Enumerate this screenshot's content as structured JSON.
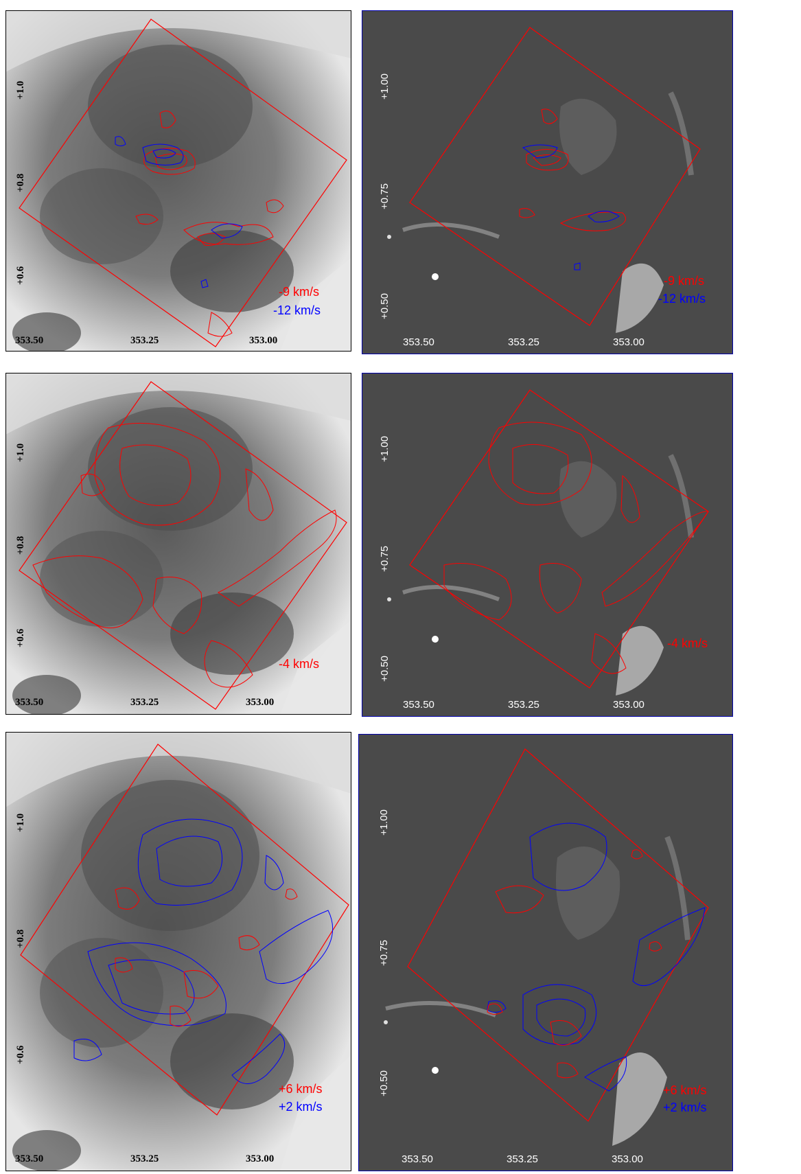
{
  "figure": {
    "rows": [
      {
        "left": {
          "x_ticks": [
            "353.50",
            "353.25",
            "353.00"
          ],
          "y_ticks": [
            "+1.0",
            "+0.8",
            "+0.6"
          ],
          "legend": [
            {
              "text": "-9 km/s",
              "color": "#ff0000"
            },
            {
              "text": "-12 km/s",
              "color": "#0000ff"
            }
          ]
        },
        "right": {
          "x_ticks": [
            "353.50",
            "353.25",
            "353.00"
          ],
          "y_ticks": [
            "+1.00",
            "+0.75",
            "+0.50"
          ],
          "legend": [
            {
              "text": "-9 km/s",
              "color": "#ff0000"
            },
            {
              "text": "-12 km/s",
              "color": "#0000ff"
            }
          ]
        }
      },
      {
        "left": {
          "x_ticks": [
            "353.50",
            "353.25",
            "353.00"
          ],
          "y_ticks": [
            "+1.0",
            "+0.8",
            "+0.6"
          ],
          "legend": [
            {
              "text": "-4 km/s",
              "color": "#ff0000"
            }
          ]
        },
        "right": {
          "x_ticks": [
            "353.50",
            "353.25",
            "353.00"
          ],
          "y_ticks": [
            "+1.00",
            "+0.75",
            "+0.50"
          ],
          "legend": [
            {
              "text": "-4 km/s",
              "color": "#ff0000"
            }
          ]
        }
      },
      {
        "left": {
          "x_ticks": [
            "353.50",
            "353.25",
            "353.00"
          ],
          "y_ticks": [
            "+1.0",
            "+0.8",
            "+0.6"
          ],
          "legend": [
            {
              "text": "+6 km/s",
              "color": "#ff0000"
            },
            {
              "text": "+2 km/s",
              "color": "#0000ff"
            }
          ]
        },
        "right": {
          "x_ticks": [
            "353.50",
            "353.25",
            "353.00"
          ],
          "y_ticks": [
            "+1.00",
            "+0.75",
            "+0.50"
          ],
          "legend": [
            {
              "text": "+6 km/s",
              "color": "#ff0000"
            },
            {
              "text": "+2 km/s",
              "color": "#0000ff"
            }
          ]
        }
      }
    ],
    "colors": {
      "frame_red": "#ff0000",
      "contour_red": "#ff0000",
      "contour_blue": "#0000ff",
      "left_background": "optical grayscale (light)",
      "right_background": "infrared grayscale (dark)"
    }
  }
}
